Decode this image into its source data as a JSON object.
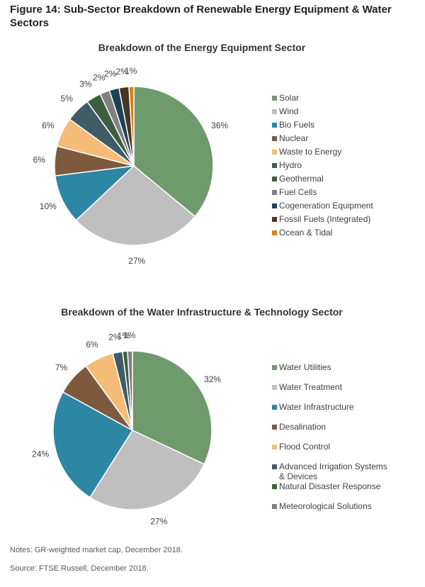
{
  "figure_title": "Figure 14: Sub-Sector Breakdown of Renewable Energy Equipment & Water Sectors",
  "chart_data": [
    {
      "type": "pie",
      "title": "Breakdown of the Energy Equipment Sector",
      "categories": [
        "Solar",
        "Wind",
        "Bio Fuels",
        "Nuclear",
        "Waste to Energy",
        "Hydro",
        "Geothermal",
        "Fuel Cells",
        "Cogeneration Equipment",
        "Fossil Fuels (Integrated)",
        "Ocean & Tidal"
      ],
      "values": [
        36,
        27,
        10,
        6,
        6,
        5,
        3,
        2,
        2,
        2,
        1
      ],
      "labels": [
        "36%",
        "27%",
        "10%",
        "6%",
        "6%",
        "5%",
        "3%",
        "2%",
        "2%",
        "2%",
        "1%"
      ],
      "colors": [
        "#6f9a6b",
        "#bfbfbf",
        "#2d86a3",
        "#7d5a3e",
        "#f5bc78",
        "#3f5b66",
        "#3f5e3f",
        "#808080",
        "#1d4257",
        "#4a3424",
        "#d98018"
      ],
      "legend_position": "right"
    },
    {
      "type": "pie",
      "title": "Breakdown of the Water Infrastructure & Technology Sector",
      "categories": [
        "Water Utilities",
        "Water Treatment",
        "Water Infrastructure",
        "Desalination",
        "Flood Control",
        "Advanced Irrigation Systems & Devices",
        "Natural Disaster Response",
        "Meteorological Solutions"
      ],
      "values": [
        32,
        27,
        24,
        7,
        6,
        2,
        1,
        1
      ],
      "labels": [
        "32%",
        "27%",
        "24%",
        "7%",
        "6%",
        "2%",
        "1%",
        "1%"
      ],
      "colors": [
        "#6f9a6b",
        "#bfbfbf",
        "#2d86a3",
        "#7d5a3e",
        "#f5bc78",
        "#3f5b66",
        "#3f5e3f",
        "#808080"
      ],
      "legend_position": "right"
    }
  ],
  "notes": "Notes: GR-weighted market cap, December 2018.",
  "source": "Source: FTSE Russell, December 2018."
}
